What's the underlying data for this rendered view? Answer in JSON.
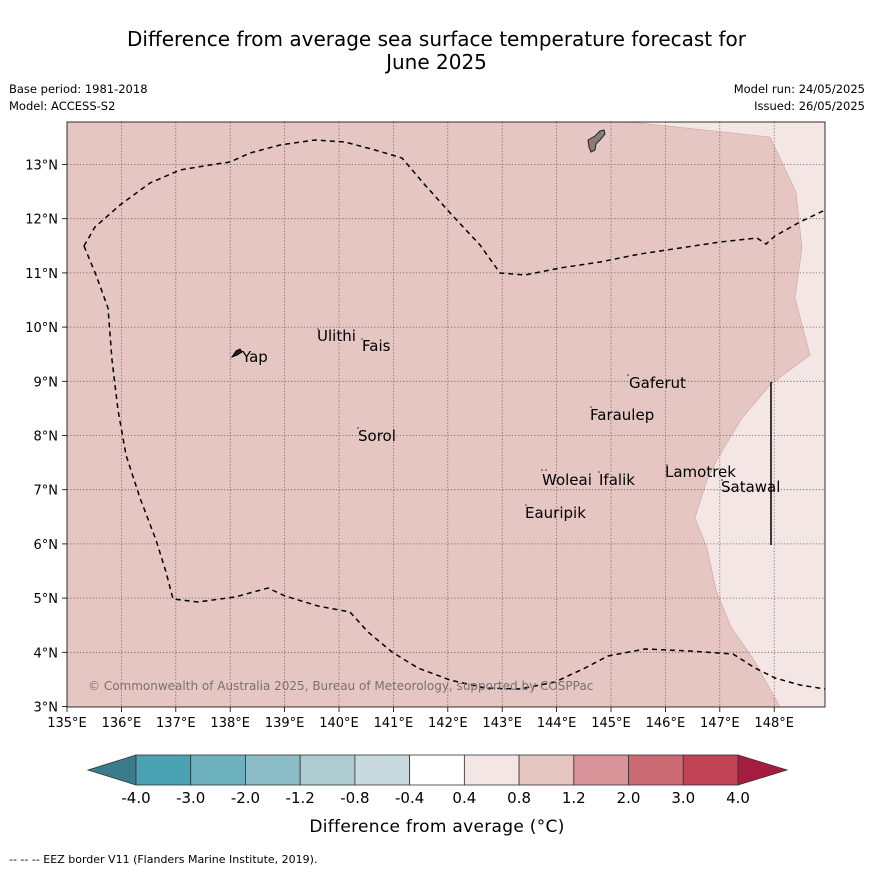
{
  "title_line1": "Difference from average sea surface temperature forecast for",
  "title_line2": "June 2025",
  "base_period": "Base period: 1981-2018",
  "model": "Model: ACCESS-S2",
  "model_run": "Model run: 24/05/2025",
  "issued": "Issued: 26/05/2025",
  "lat_ticks": [
    "13°N",
    "12°N",
    "11°N",
    "10°N",
    "9°N",
    "8°N",
    "7°N",
    "6°N",
    "5°N",
    "4°N",
    "3°N"
  ],
  "lon_ticks": [
    "135°E",
    "136°E",
    "137°E",
    "138°E",
    "139°E",
    "140°E",
    "141°E",
    "142°E",
    "143°E",
    "144°E",
    "145°E",
    "146°E",
    "147°E",
    "148°E"
  ],
  "places": [
    {
      "name": "Yap"
    },
    {
      "name": "Ulithi"
    },
    {
      "name": "Fais"
    },
    {
      "name": "Gaferut"
    },
    {
      "name": "Faraulep"
    },
    {
      "name": "Sorol"
    },
    {
      "name": "Lamotrek"
    },
    {
      "name": "Woleai"
    },
    {
      "name": "Ifalik"
    },
    {
      "name": "Satawal"
    },
    {
      "name": "Eauripik"
    }
  ],
  "copyright": "© Commonwealth of Australia 2025, Bureau of Meteorology, supported by COSPPac",
  "colorbar": {
    "labels": [
      "-4.0",
      "-3.0",
      "-2.0",
      "-1.2",
      "-0.8",
      "-0.4",
      "0.4",
      "0.8",
      "1.2",
      "2.0",
      "3.0",
      "4.0"
    ],
    "colors": [
      "#3b7c8a",
      "#4aa3b2",
      "#6cb1bd",
      "#8cbcc6",
      "#aecbd1",
      "#c9dade",
      "#ffffff",
      "#f4e6e5",
      "#e6c6c2",
      "#d89498",
      "#cc6a74",
      "#c04456",
      "#a51d3c"
    ],
    "title": "Difference from average (°C)"
  },
  "map_fill": {
    "main": "#e6c6c2",
    "east": "#f4e6e5"
  },
  "footnote": "--  --  -- EEZ border V11 (Flanders Marine Institute, 2019)."
}
